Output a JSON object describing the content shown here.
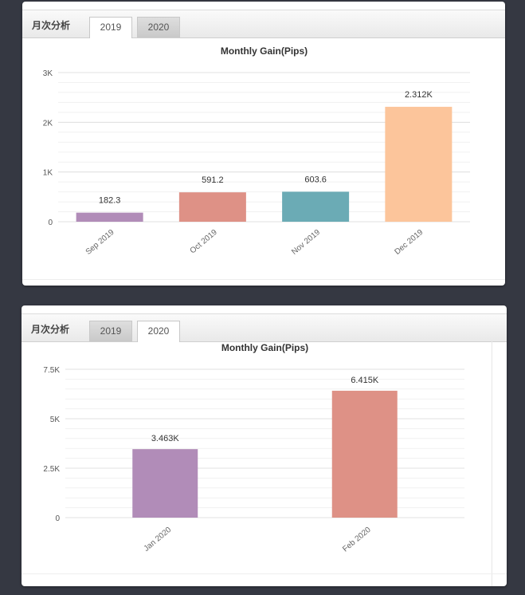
{
  "panels": [
    {
      "tab_label": "月次分析",
      "tabs": [
        {
          "label": "2019",
          "active": true
        },
        {
          "label": "2020",
          "active": false
        }
      ]
    },
    {
      "tab_label": "月次分析",
      "tabs": [
        {
          "label": "2019",
          "active": false
        },
        {
          "label": "2020",
          "active": true
        }
      ]
    }
  ],
  "chart_data": [
    {
      "type": "bar",
      "title": "Monthly Gain(Pips)",
      "categories": [
        "Sep 2019",
        "Oct 2019",
        "Nov 2019",
        "Dec 2019"
      ],
      "values": [
        182.3,
        591.2,
        603.6,
        2312
      ],
      "data_labels": [
        "182.3",
        "591.2",
        "603.6",
        "2.312K"
      ],
      "colors": [
        "#b18cb8",
        "#de9186",
        "#6babb5",
        "#fcc59b"
      ],
      "ylim": [
        0,
        3000
      ],
      "yticks": [
        0,
        1000,
        2000,
        3000
      ],
      "ytick_labels": [
        "0",
        "1K",
        "2K",
        "3K"
      ],
      "grid": true,
      "xlabel": "",
      "ylabel": ""
    },
    {
      "type": "bar",
      "title": "Monthly Gain(Pips)",
      "categories": [
        "Jan 2020",
        "Feb 2020"
      ],
      "values": [
        3463,
        6415
      ],
      "data_labels": [
        "3.463K",
        "6.415K"
      ],
      "colors": [
        "#b18cb8",
        "#de9186"
      ],
      "ylim": [
        0,
        7500
      ],
      "yticks": [
        0,
        2500,
        5000,
        7500
      ],
      "ytick_labels": [
        "0",
        "2.5K",
        "5K",
        "7.5K"
      ],
      "grid": true,
      "xlabel": "",
      "ylabel": ""
    }
  ]
}
